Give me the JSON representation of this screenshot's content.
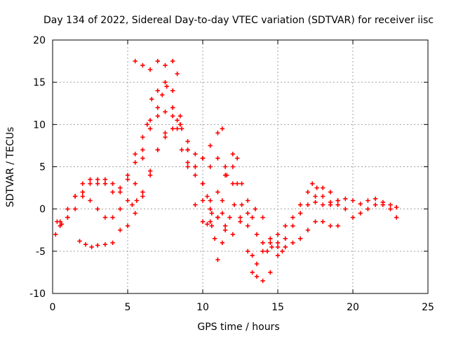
{
  "chart_data": {
    "type": "scatter",
    "title": "Day 134 of 2022, Sidereal Day-to-day VTEC variation (SDTVAR) for receiver iisc",
    "xlabel": "GPS time / hours",
    "ylabel": "SDTVAR / TECUs",
    "xlim": [
      0,
      25
    ],
    "ylim": [
      -10,
      20
    ],
    "xticks": [
      0,
      5,
      10,
      15,
      20,
      25
    ],
    "yticks": [
      -10,
      -5,
      0,
      5,
      10,
      15,
      20
    ],
    "xtick_labels": [
      "0",
      "5",
      "10",
      "15",
      "20",
      "25"
    ],
    "ytick_labels": [
      "-10",
      "-5",
      "0",
      "5",
      "10",
      "15",
      "20"
    ],
    "grid": true,
    "marker": "plus",
    "color": "#ff0000",
    "series": [
      {
        "x": [
          0.2,
          0.5,
          1.0,
          1.5,
          2.0,
          2.5,
          3.0,
          3.5,
          4.0,
          4.5,
          5.0,
          5.5,
          6.0,
          6.5,
          7.0,
          7.5,
          8.0,
          8.5,
          9.0,
          9.5,
          10.0,
          10.5,
          11.0,
          11.5,
          12.0,
          12.5,
          13.0,
          13.3,
          13.6,
          14.0,
          14.5,
          15.0,
          15.5,
          16.0,
          16.5,
          17.0,
          17.3,
          17.6,
          18.0,
          18.5,
          19.0,
          19.5,
          20.0,
          20.5,
          21.0,
          21.5,
          22.0,
          22.5,
          22.9
        ],
        "y": [
          -3.0,
          -2.0,
          -1.0,
          1.5,
          3.0,
          3.5,
          3.0,
          3.5,
          3.0,
          2.0,
          4.0,
          6.5,
          8.5,
          10.5,
          11.0,
          11.5,
          12.0,
          10.0,
          8.0,
          6.5,
          6.0,
          5.0,
          6.0,
          5.0,
          3.0,
          -1.0,
          -5.0,
          -7.5,
          -6.5,
          -5.0,
          -4.0,
          -3.0,
          -2.0,
          -1.0,
          0.5,
          2.0,
          3.0,
          2.5,
          1.5,
          0.5,
          0.5,
          0.0,
          -1.0,
          -0.5,
          0.0,
          0.5,
          0.5,
          0.0,
          -1.0
        ]
      },
      {
        "x": [
          0.3,
          0.6,
          1.0,
          1.5,
          2.0,
          2.5,
          3.0,
          3.5,
          4.0,
          4.5,
          5.0,
          5.5,
          6.0,
          6.5,
          7.0,
          7.3,
          7.6,
          8.0,
          8.3,
          8.6,
          9.0,
          9.5,
          10.0,
          10.5,
          11.0,
          11.3
        ],
        "y": [
          -1.5,
          -1.8,
          -1.0,
          0.0,
          1.5,
          3.0,
          3.5,
          3.0,
          2.0,
          2.5,
          3.5,
          5.5,
          7.0,
          9.5,
          12.0,
          13.5,
          14.5,
          12.0,
          9.5,
          7.0,
          5.5,
          5.0,
          6.0,
          7.5,
          9.0,
          9.5
        ]
      },
      {
        "x": [
          0.5,
          1.0,
          1.5,
          2.0,
          2.5,
          3.0,
          3.5,
          4.0,
          4.5,
          5.0,
          5.5,
          6.0,
          6.3,
          6.6,
          7.0,
          7.5,
          8.0,
          8.5,
          9.0,
          9.5,
          10.0,
          10.5,
          11.0,
          11.5,
          12.0,
          12.3,
          12.6,
          13.0,
          13.3,
          13.6,
          14.0,
          14.5,
          15.0,
          15.5,
          16.0,
          16.5,
          17.0,
          17.5,
          18.0,
          18.5,
          19.0
        ],
        "y": [
          -1.5,
          0.0,
          1.5,
          2.0,
          1.0,
          0.0,
          -1.0,
          -1.0,
          0.0,
          1.0,
          3.0,
          6.0,
          10.0,
          13.0,
          14.0,
          15.0,
          14.0,
          11.0,
          7.0,
          5.0,
          3.0,
          1.0,
          2.0,
          4.0,
          5.0,
          3.0,
          0.5,
          -2.0,
          -5.5,
          -8.0,
          -8.5,
          -7.5,
          -5.5,
          -3.5,
          -2.0,
          -0.5,
          0.5,
          1.5,
          2.5,
          2.0,
          1.0
        ]
      },
      {
        "x": [
          1.8,
          2.2,
          2.6,
          3.0,
          3.5,
          4.0,
          4.5,
          5.0,
          5.5,
          6.0,
          6.5,
          7.0,
          7.5,
          8.0,
          8.5,
          9.0,
          9.5,
          10.0,
          10.5,
          11.0,
          11.5,
          12.0,
          12.5,
          13.0,
          13.5,
          14.0,
          14.5,
          15.0,
          15.5,
          16.0,
          16.5,
          17.0,
          17.5,
          18.0,
          18.5,
          19.0
        ],
        "y": [
          -3.8,
          -4.2,
          -4.5,
          -4.3,
          -4.2,
          -4.0,
          -2.5,
          -2.0,
          -0.5,
          1.5,
          4.5,
          7.0,
          9.0,
          11.0,
          10.0,
          7.0,
          4.0,
          1.0,
          0.0,
          -1.0,
          -2.0,
          -3.0,
          -1.5,
          -0.5,
          0.0,
          -1.0,
          -3.5,
          -4.5,
          -4.5,
          -4.0,
          -3.5,
          -2.5,
          -1.5,
          -1.5,
          -2.0,
          -2.0
        ]
      },
      {
        "x": [
          5.3,
          5.6,
          6.0,
          6.5,
          7.0,
          7.5,
          8.0,
          8.3,
          8.6,
          9.0,
          9.5,
          10.0,
          10.3,
          10.6,
          11.0,
          11.3
        ],
        "y": [
          0.5,
          1.0,
          2.0,
          4.0,
          7.0,
          8.5,
          9.5,
          10.5,
          9.5,
          5.0,
          0.5,
          -1.5,
          -1.8,
          -2.0,
          -1.0,
          -0.5
        ]
      },
      {
        "x": [
          5.5,
          6.0,
          6.5,
          7.0,
          7.5,
          8.0,
          8.3
        ],
        "y": [
          17.5,
          17.0,
          16.5,
          17.5,
          17.0,
          17.5,
          16.0
        ]
      },
      {
        "x": [
          10.0,
          10.3,
          10.6,
          11.0,
          11.3,
          11.6,
          12.0,
          12.3,
          12.6,
          13.0,
          13.3,
          13.6,
          14.0,
          14.3,
          14.6,
          15.0,
          15.3
        ],
        "y": [
          3.0,
          1.5,
          -0.5,
          -1.0,
          1.0,
          4.0,
          6.5,
          6.0,
          3.0,
          1.0,
          -1.0,
          -3.0,
          -4.0,
          -5.0,
          -4.5,
          -4.0,
          -5.0
        ]
      },
      {
        "x": [
          10.5,
          10.8,
          11.0,
          11.3,
          11.5,
          11.8,
          12.1
        ],
        "y": [
          -1.5,
          -3.5,
          -6.0,
          -4.0,
          -2.5,
          -1.0,
          0.5
        ]
      },
      {
        "x": [
          17.5,
          18.0,
          18.5,
          19.0,
          19.5,
          20.0,
          20.5,
          21.0,
          21.5,
          22.0,
          22.5,
          22.9
        ],
        "y": [
          0.8,
          0.5,
          0.8,
          1.0,
          1.2,
          1.0,
          0.6,
          1.0,
          1.2,
          0.8,
          0.5,
          0.2
        ]
      }
    ]
  }
}
